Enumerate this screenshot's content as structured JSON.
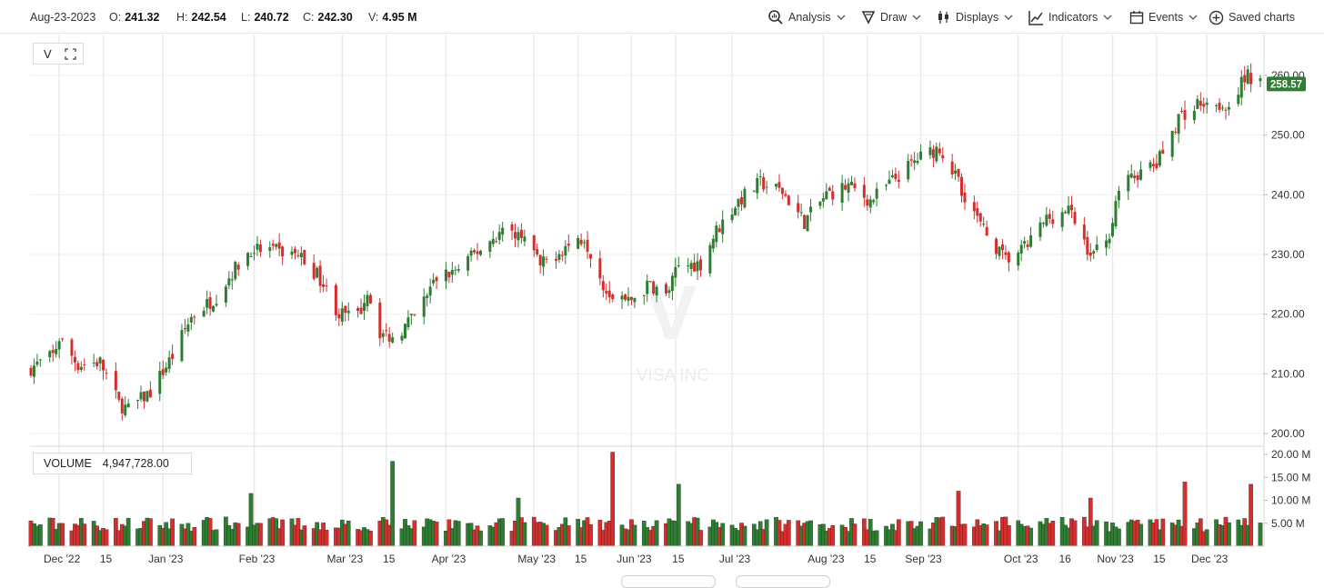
{
  "header": {
    "date": "Aug-23-2023",
    "open_label": "O:",
    "open": "241.32",
    "high_label": "H:",
    "high": "242.54",
    "low_label": "L:",
    "low": "240.72",
    "close_label": "C:",
    "close": "242.30",
    "volume_label": "V:",
    "volume": "4.95 M"
  },
  "toolbar": {
    "analysis": "Analysis",
    "draw": "Draw",
    "displays": "Displays",
    "indicators": "Indicators",
    "events": "Events",
    "saved_charts": "Saved charts"
  },
  "symbol": "V",
  "watermark": {
    "ticker": "V",
    "name": "VISA INC"
  },
  "last_price": "258.57",
  "volume_panel": {
    "label": "VOLUME",
    "value": "4,947,728.00"
  },
  "colors": {
    "up": "#2e7d32",
    "down": "#d32f2f",
    "price_tag": "#2e7d32",
    "grid": "#e9e9e9"
  },
  "chart_data": {
    "type": "candlestick",
    "title": "",
    "price_axis": {
      "ticks": [
        "200.00",
        "210.00",
        "220.00",
        "230.00",
        "240.00",
        "250.00",
        "260.00"
      ],
      "ylim": [
        198,
        264
      ]
    },
    "volume_axis": {
      "ticks": [
        "5.00 M",
        "10.00 M",
        "15.00 M",
        "20.00 M"
      ],
      "ylim": [
        0,
        21
      ]
    },
    "x_labels": [
      "Dec '22",
      "15",
      "Jan '23",
      "Feb '23",
      "Mar '23",
      "15",
      "Apr '23",
      "May '23",
      "15",
      "Jun '23",
      "15",
      "Jul '23",
      "Aug '23",
      "15",
      "Sep '23",
      "Oct '23",
      "16",
      "Nov '23",
      "15",
      "Dec '23"
    ],
    "anchors": [
      {
        "date": "2022-11-22",
        "close": 211.0
      },
      {
        "date": "2022-11-29",
        "close": 213.0
      },
      {
        "date": "2022-12-01",
        "close": 216.0
      },
      {
        "date": "2022-12-07",
        "close": 211.5
      },
      {
        "date": "2022-12-14",
        "close": 212.0
      },
      {
        "date": "2022-12-20",
        "close": 205.0
      },
      {
        "date": "2022-12-23",
        "close": 204.0
      },
      {
        "date": "2022-12-30",
        "close": 207.0
      },
      {
        "date": "2023-01-06",
        "close": 213.0
      },
      {
        "date": "2023-01-12",
        "close": 219.5
      },
      {
        "date": "2023-01-20",
        "close": 223.0
      },
      {
        "date": "2023-01-25",
        "close": 227.0
      },
      {
        "date": "2023-01-31",
        "close": 231.0
      },
      {
        "date": "2023-02-08",
        "close": 230.5
      },
      {
        "date": "2023-02-15",
        "close": 230.0
      },
      {
        "date": "2023-02-22",
        "close": 226.0
      },
      {
        "date": "2023-02-28",
        "close": 220.0
      },
      {
        "date": "2023-03-06",
        "close": 219.5
      },
      {
        "date": "2023-03-09",
        "close": 224.0
      },
      {
        "date": "2023-03-13",
        "close": 217.0
      },
      {
        "date": "2023-03-17",
        "close": 216.0
      },
      {
        "date": "2023-03-24",
        "close": 219.5
      },
      {
        "date": "2023-03-31",
        "close": 226.0
      },
      {
        "date": "2023-04-07",
        "close": 227.5
      },
      {
        "date": "2023-04-14",
        "close": 231.0
      },
      {
        "date": "2023-04-21",
        "close": 234.0
      },
      {
        "date": "2023-04-28",
        "close": 233.5
      },
      {
        "date": "2023-05-03",
        "close": 228.0
      },
      {
        "date": "2023-05-10",
        "close": 231.0
      },
      {
        "date": "2023-05-17",
        "close": 233.0
      },
      {
        "date": "2023-05-24",
        "close": 224.0
      },
      {
        "date": "2023-05-31",
        "close": 222.0
      },
      {
        "date": "2023-06-07",
        "close": 225.0
      },
      {
        "date": "2023-06-12",
        "close": 223.0
      },
      {
        "date": "2023-06-16",
        "close": 228.0
      },
      {
        "date": "2023-06-23",
        "close": 228.5
      },
      {
        "date": "2023-06-28",
        "close": 234.0
      },
      {
        "date": "2023-07-05",
        "close": 239.0
      },
      {
        "date": "2023-07-12",
        "close": 242.0
      },
      {
        "date": "2023-07-19",
        "close": 240.5
      },
      {
        "date": "2023-07-26",
        "close": 235.5
      },
      {
        "date": "2023-08-02",
        "close": 240.0
      },
      {
        "date": "2023-08-09",
        "close": 241.5
      },
      {
        "date": "2023-08-16",
        "close": 239.0
      },
      {
        "date": "2023-08-23",
        "close": 242.3
      },
      {
        "date": "2023-08-31",
        "close": 246.0
      },
      {
        "date": "2023-09-07",
        "close": 248.0
      },
      {
        "date": "2023-09-14",
        "close": 241.0
      },
      {
        "date": "2023-09-21",
        "close": 234.0
      },
      {
        "date": "2023-09-28",
        "close": 229.0
      },
      {
        "date": "2023-10-04",
        "close": 231.0
      },
      {
        "date": "2023-10-11",
        "close": 236.0
      },
      {
        "date": "2023-10-18",
        "close": 237.5
      },
      {
        "date": "2023-10-25",
        "close": 230.0
      },
      {
        "date": "2023-10-30",
        "close": 231.5
      },
      {
        "date": "2023-11-03",
        "close": 241.0
      },
      {
        "date": "2023-11-09",
        "close": 243.5
      },
      {
        "date": "2023-11-15",
        "close": 245.0
      },
      {
        "date": "2023-11-22",
        "close": 253.0
      },
      {
        "date": "2023-11-30",
        "close": 256.0
      },
      {
        "date": "2023-12-07",
        "close": 255.0
      },
      {
        "date": "2023-12-14",
        "close": 260.0
      },
      {
        "date": "2023-12-18",
        "close": 258.57
      }
    ],
    "volume_spikes": [
      {
        "date": "2023-01-31",
        "value": 11.5
      },
      {
        "date": "2023-03-17",
        "value": 18.5
      },
      {
        "date": "2023-04-26",
        "value": 10.5
      },
      {
        "date": "2023-05-26",
        "value": 20.5
      },
      {
        "date": "2023-06-16",
        "value": 13.5
      },
      {
        "date": "2023-09-13",
        "value": 12.0
      },
      {
        "date": "2023-10-25",
        "value": 10.5
      },
      {
        "date": "2023-11-24",
        "value": 14.0
      },
      {
        "date": "2023-12-15",
        "value": 13.5
      }
    ]
  }
}
